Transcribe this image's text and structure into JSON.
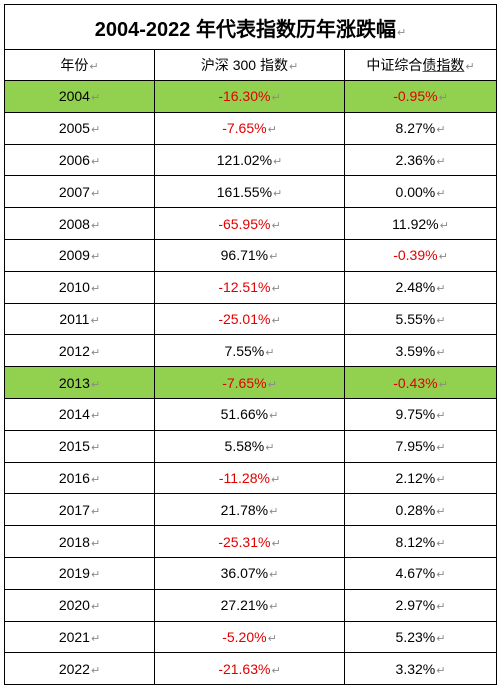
{
  "title": "2004-2022 年代表指数历年涨跌幅",
  "para_mark": "↵",
  "headers": {
    "year": "年份",
    "csi300": "沪深 300 指数",
    "bond_pre": "中证综合",
    "bond_ul": "债指数"
  },
  "colors": {
    "highlight": "#92d050",
    "negative": "#e00000",
    "positive": "#000000"
  },
  "rows": [
    {
      "year": "2004",
      "csi300": "-16.30%",
      "bond": "-0.95%",
      "highlight": true
    },
    {
      "year": "2005",
      "csi300": "-7.65%",
      "bond": "8.27%",
      "highlight": false
    },
    {
      "year": "2006",
      "csi300": "121.02%",
      "bond": "2.36%",
      "highlight": false
    },
    {
      "year": "2007",
      "csi300": "161.55%",
      "bond": "0.00%",
      "highlight": false
    },
    {
      "year": "2008",
      "csi300": "-65.95%",
      "bond": "11.92%",
      "highlight": false
    },
    {
      "year": "2009",
      "csi300": "96.71%",
      "bond": "-0.39%",
      "highlight": false
    },
    {
      "year": "2010",
      "csi300": "-12.51%",
      "bond": "2.48%",
      "highlight": false
    },
    {
      "year": "2011",
      "csi300": "-25.01%",
      "bond": "5.55%",
      "highlight": false
    },
    {
      "year": "2012",
      "csi300": "7.55%",
      "bond": "3.59%",
      "highlight": false
    },
    {
      "year": "2013",
      "csi300": "-7.65%",
      "bond": "-0.43%",
      "highlight": true
    },
    {
      "year": "2014",
      "csi300": "51.66%",
      "bond": "9.75%",
      "highlight": false
    },
    {
      "year": "2015",
      "csi300": "5.58%",
      "bond": "7.95%",
      "highlight": false
    },
    {
      "year": "2016",
      "csi300": "-11.28%",
      "bond": "2.12%",
      "highlight": false
    },
    {
      "year": "2017",
      "csi300": "21.78%",
      "bond": "0.28%",
      "highlight": false
    },
    {
      "year": "2018",
      "csi300": "-25.31%",
      "bond": "8.12%",
      "highlight": false
    },
    {
      "year": "2019",
      "csi300": "36.07%",
      "bond": "4.67%",
      "highlight": false
    },
    {
      "year": "2020",
      "csi300": "27.21%",
      "bond": "2.97%",
      "highlight": false
    },
    {
      "year": "2021",
      "csi300": "-5.20%",
      "bond": "5.23%",
      "highlight": false
    },
    {
      "year": "2022",
      "csi300": "-21.63%",
      "bond": "3.32%",
      "highlight": false
    }
  ]
}
